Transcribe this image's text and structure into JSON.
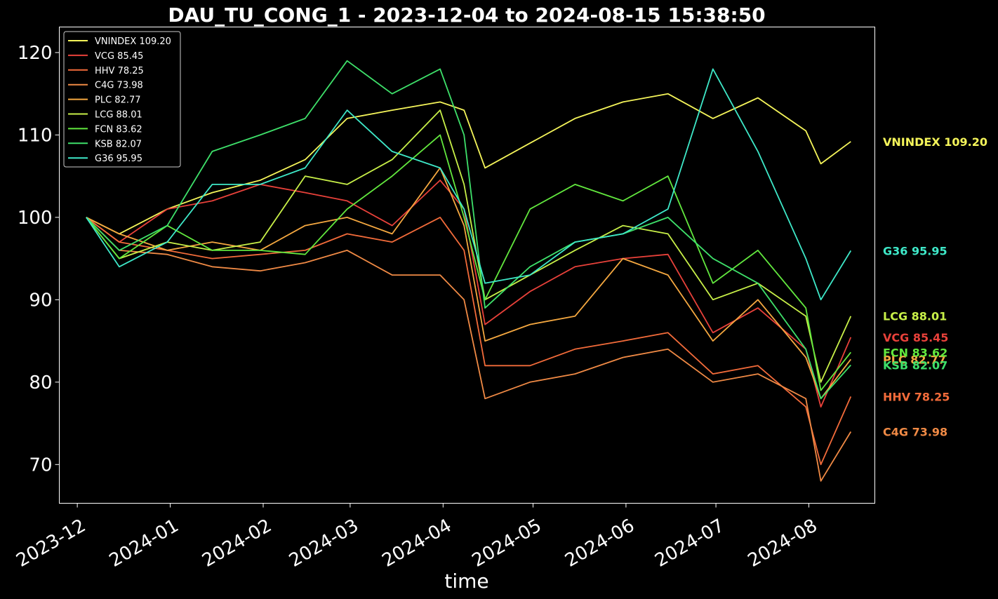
{
  "chart_data": {
    "type": "line",
    "title": "DAU_TU_CONG_1 - 2023-12-04 to 2024-08-15 15:38:50",
    "xlabel": "time",
    "ylabel": "",
    "ylim": [
      65.3,
      123.1
    ],
    "xlim": [
      "2023-11-25",
      "2024-08-23"
    ],
    "grid": false,
    "legend_placement": "top-left",
    "background": "#000000",
    "yticks": [
      70,
      80,
      90,
      100,
      110,
      120
    ],
    "xticks": [
      "2023-12-01",
      "2024-01-01",
      "2024-02-01",
      "2024-03-01",
      "2024-04-01",
      "2024-05-01",
      "2024-06-01",
      "2024-07-01",
      "2024-08-01"
    ],
    "xtick_labels": [
      "2023-12",
      "2024-01",
      "2024-02",
      "2024-03",
      "2024-04",
      "2024-05",
      "2024-06",
      "2024-07",
      "2024-08"
    ],
    "series": [
      {
        "name": "VNINDEX",
        "label": "VNINDEX 109.20",
        "color": "#f5f55a",
        "last": 109.2,
        "x": [
          "2023-12-04",
          "2023-12-15",
          "2023-12-31",
          "2024-01-15",
          "2024-01-31",
          "2024-02-15",
          "2024-02-29",
          "2024-03-15",
          "2024-03-31",
          "2024-04-08",
          "2024-04-15",
          "2024-04-30",
          "2024-05-15",
          "2024-05-31",
          "2024-06-15",
          "2024-06-30",
          "2024-07-15",
          "2024-07-31",
          "2024-08-05",
          "2024-08-15"
        ],
        "y": [
          100,
          98,
          101,
          103,
          104.5,
          107,
          112,
          113,
          114,
          113,
          106,
          109,
          112,
          114,
          115,
          112,
          114.5,
          110.5,
          106.5,
          109.2
        ]
      },
      {
        "name": "VCG",
        "label": "VCG 85.45",
        "color": "#e8413a",
        "last": 85.45,
        "x": [
          "2023-12-04",
          "2023-12-15",
          "2023-12-31",
          "2024-01-15",
          "2024-01-31",
          "2024-02-15",
          "2024-02-29",
          "2024-03-15",
          "2024-03-31",
          "2024-04-08",
          "2024-04-15",
          "2024-04-30",
          "2024-05-15",
          "2024-05-31",
          "2024-06-15",
          "2024-06-30",
          "2024-07-15",
          "2024-07-31",
          "2024-08-05",
          "2024-08-15"
        ],
        "y": [
          100,
          97,
          101,
          102,
          104,
          103,
          102,
          99,
          104.5,
          101,
          87,
          91,
          94,
          95,
          95.5,
          86,
          89,
          84,
          77,
          85.45
        ]
      },
      {
        "name": "HHV",
        "label": "HHV 78.25",
        "color": "#f26b3a",
        "last": 78.25,
        "x": [
          "2023-12-04",
          "2023-12-15",
          "2023-12-31",
          "2024-01-15",
          "2024-01-31",
          "2024-02-15",
          "2024-02-29",
          "2024-03-15",
          "2024-03-31",
          "2024-04-08",
          "2024-04-15",
          "2024-04-30",
          "2024-05-15",
          "2024-05-31",
          "2024-06-15",
          "2024-06-30",
          "2024-07-15",
          "2024-07-31",
          "2024-08-05",
          "2024-08-15"
        ],
        "y": [
          100,
          97,
          96,
          95,
          95.5,
          96,
          98,
          97,
          100,
          96,
          82,
          82,
          84,
          85,
          86,
          81,
          82,
          77,
          70,
          78.25
        ]
      },
      {
        "name": "C4G",
        "label": "C4G 73.98",
        "color": "#f08a45",
        "last": 73.98,
        "x": [
          "2023-12-04",
          "2023-12-15",
          "2023-12-31",
          "2024-01-15",
          "2024-01-31",
          "2024-02-15",
          "2024-02-29",
          "2024-03-15",
          "2024-03-31",
          "2024-04-08",
          "2024-04-15",
          "2024-04-30",
          "2024-05-15",
          "2024-05-31",
          "2024-06-15",
          "2024-06-30",
          "2024-07-15",
          "2024-07-31",
          "2024-08-05",
          "2024-08-15"
        ],
        "y": [
          100,
          96,
          95.5,
          94,
          93.5,
          94.5,
          96,
          93,
          93,
          90,
          78,
          80,
          81,
          83,
          84,
          80,
          81,
          78,
          68,
          73.98
        ]
      },
      {
        "name": "PLC",
        "label": "PLC 82.77",
        "color": "#f5a840",
        "last": 82.77,
        "x": [
          "2023-12-04",
          "2023-12-15",
          "2023-12-31",
          "2024-01-15",
          "2024-01-31",
          "2024-02-15",
          "2024-02-29",
          "2024-03-15",
          "2024-03-31",
          "2024-04-08",
          "2024-04-15",
          "2024-04-30",
          "2024-05-15",
          "2024-05-31",
          "2024-06-15",
          "2024-06-30",
          "2024-07-15",
          "2024-07-31",
          "2024-08-05",
          "2024-08-15"
        ],
        "y": [
          100,
          98,
          96,
          97,
          96,
          99,
          100,
          98,
          106,
          99,
          85,
          87,
          88,
          95,
          93,
          85,
          90,
          83,
          78,
          82.77
        ]
      },
      {
        "name": "LCG",
        "label": "LCG 88.01",
        "color": "#c8f048",
        "last": 88.01,
        "x": [
          "2023-12-04",
          "2023-12-15",
          "2023-12-31",
          "2024-01-15",
          "2024-01-31",
          "2024-02-15",
          "2024-02-29",
          "2024-03-15",
          "2024-03-31",
          "2024-04-08",
          "2024-04-15",
          "2024-04-30",
          "2024-05-15",
          "2024-05-31",
          "2024-06-15",
          "2024-06-30",
          "2024-07-15",
          "2024-07-31",
          "2024-08-05",
          "2024-08-15"
        ],
        "y": [
          100,
          95,
          97,
          96,
          97,
          105,
          104,
          107,
          113,
          104,
          90,
          93,
          96,
          99,
          98,
          90,
          92,
          88,
          80,
          88.01
        ]
      },
      {
        "name": "FCN",
        "label": "FCN 83.62",
        "color": "#62e83e",
        "last": 83.62,
        "x": [
          "2023-12-04",
          "2023-12-15",
          "2023-12-31",
          "2024-01-15",
          "2024-01-31",
          "2024-02-15",
          "2024-02-29",
          "2024-03-15",
          "2024-03-31",
          "2024-04-08",
          "2024-04-15",
          "2024-04-30",
          "2024-05-15",
          "2024-05-31",
          "2024-06-15",
          "2024-06-30",
          "2024-07-15",
          "2024-07-31",
          "2024-08-05",
          "2024-08-15"
        ],
        "y": [
          100,
          95,
          99,
          96,
          96,
          95.5,
          101,
          105,
          110,
          100,
          90,
          101,
          104,
          102,
          105,
          92,
          96,
          89,
          79,
          83.62
        ]
      },
      {
        "name": "KSB",
        "label": "KSB 82.07",
        "color": "#3ee06a",
        "last": 82.07,
        "x": [
          "2023-12-04",
          "2023-12-15",
          "2023-12-31",
          "2024-01-15",
          "2024-01-31",
          "2024-02-15",
          "2024-02-29",
          "2024-03-15",
          "2024-03-31",
          "2024-04-08",
          "2024-04-15",
          "2024-04-30",
          "2024-05-15",
          "2024-05-31",
          "2024-06-15",
          "2024-06-30",
          "2024-07-15",
          "2024-07-31",
          "2024-08-05",
          "2024-08-15"
        ],
        "y": [
          100,
          96,
          99,
          108,
          110,
          112,
          119,
          115,
          118,
          110,
          89,
          94,
          97,
          98,
          100,
          95,
          92,
          84,
          78,
          82.07
        ]
      },
      {
        "name": "G36",
        "label": "G36 95.95",
        "color": "#3ee8c8",
        "last": 95.95,
        "x": [
          "2023-12-04",
          "2023-12-15",
          "2023-12-31",
          "2024-01-15",
          "2024-01-31",
          "2024-02-15",
          "2024-02-29",
          "2024-03-15",
          "2024-03-31",
          "2024-04-08",
          "2024-04-15",
          "2024-04-30",
          "2024-05-15",
          "2024-05-31",
          "2024-06-15",
          "2024-06-30",
          "2024-07-15",
          "2024-07-31",
          "2024-08-05",
          "2024-08-15"
        ],
        "y": [
          100,
          94,
          97,
          104,
          104,
          106,
          113,
          108,
          106,
          101,
          92,
          93,
          97,
          98,
          101,
          118,
          108,
          95,
          90,
          95.95
        ]
      }
    ]
  }
}
